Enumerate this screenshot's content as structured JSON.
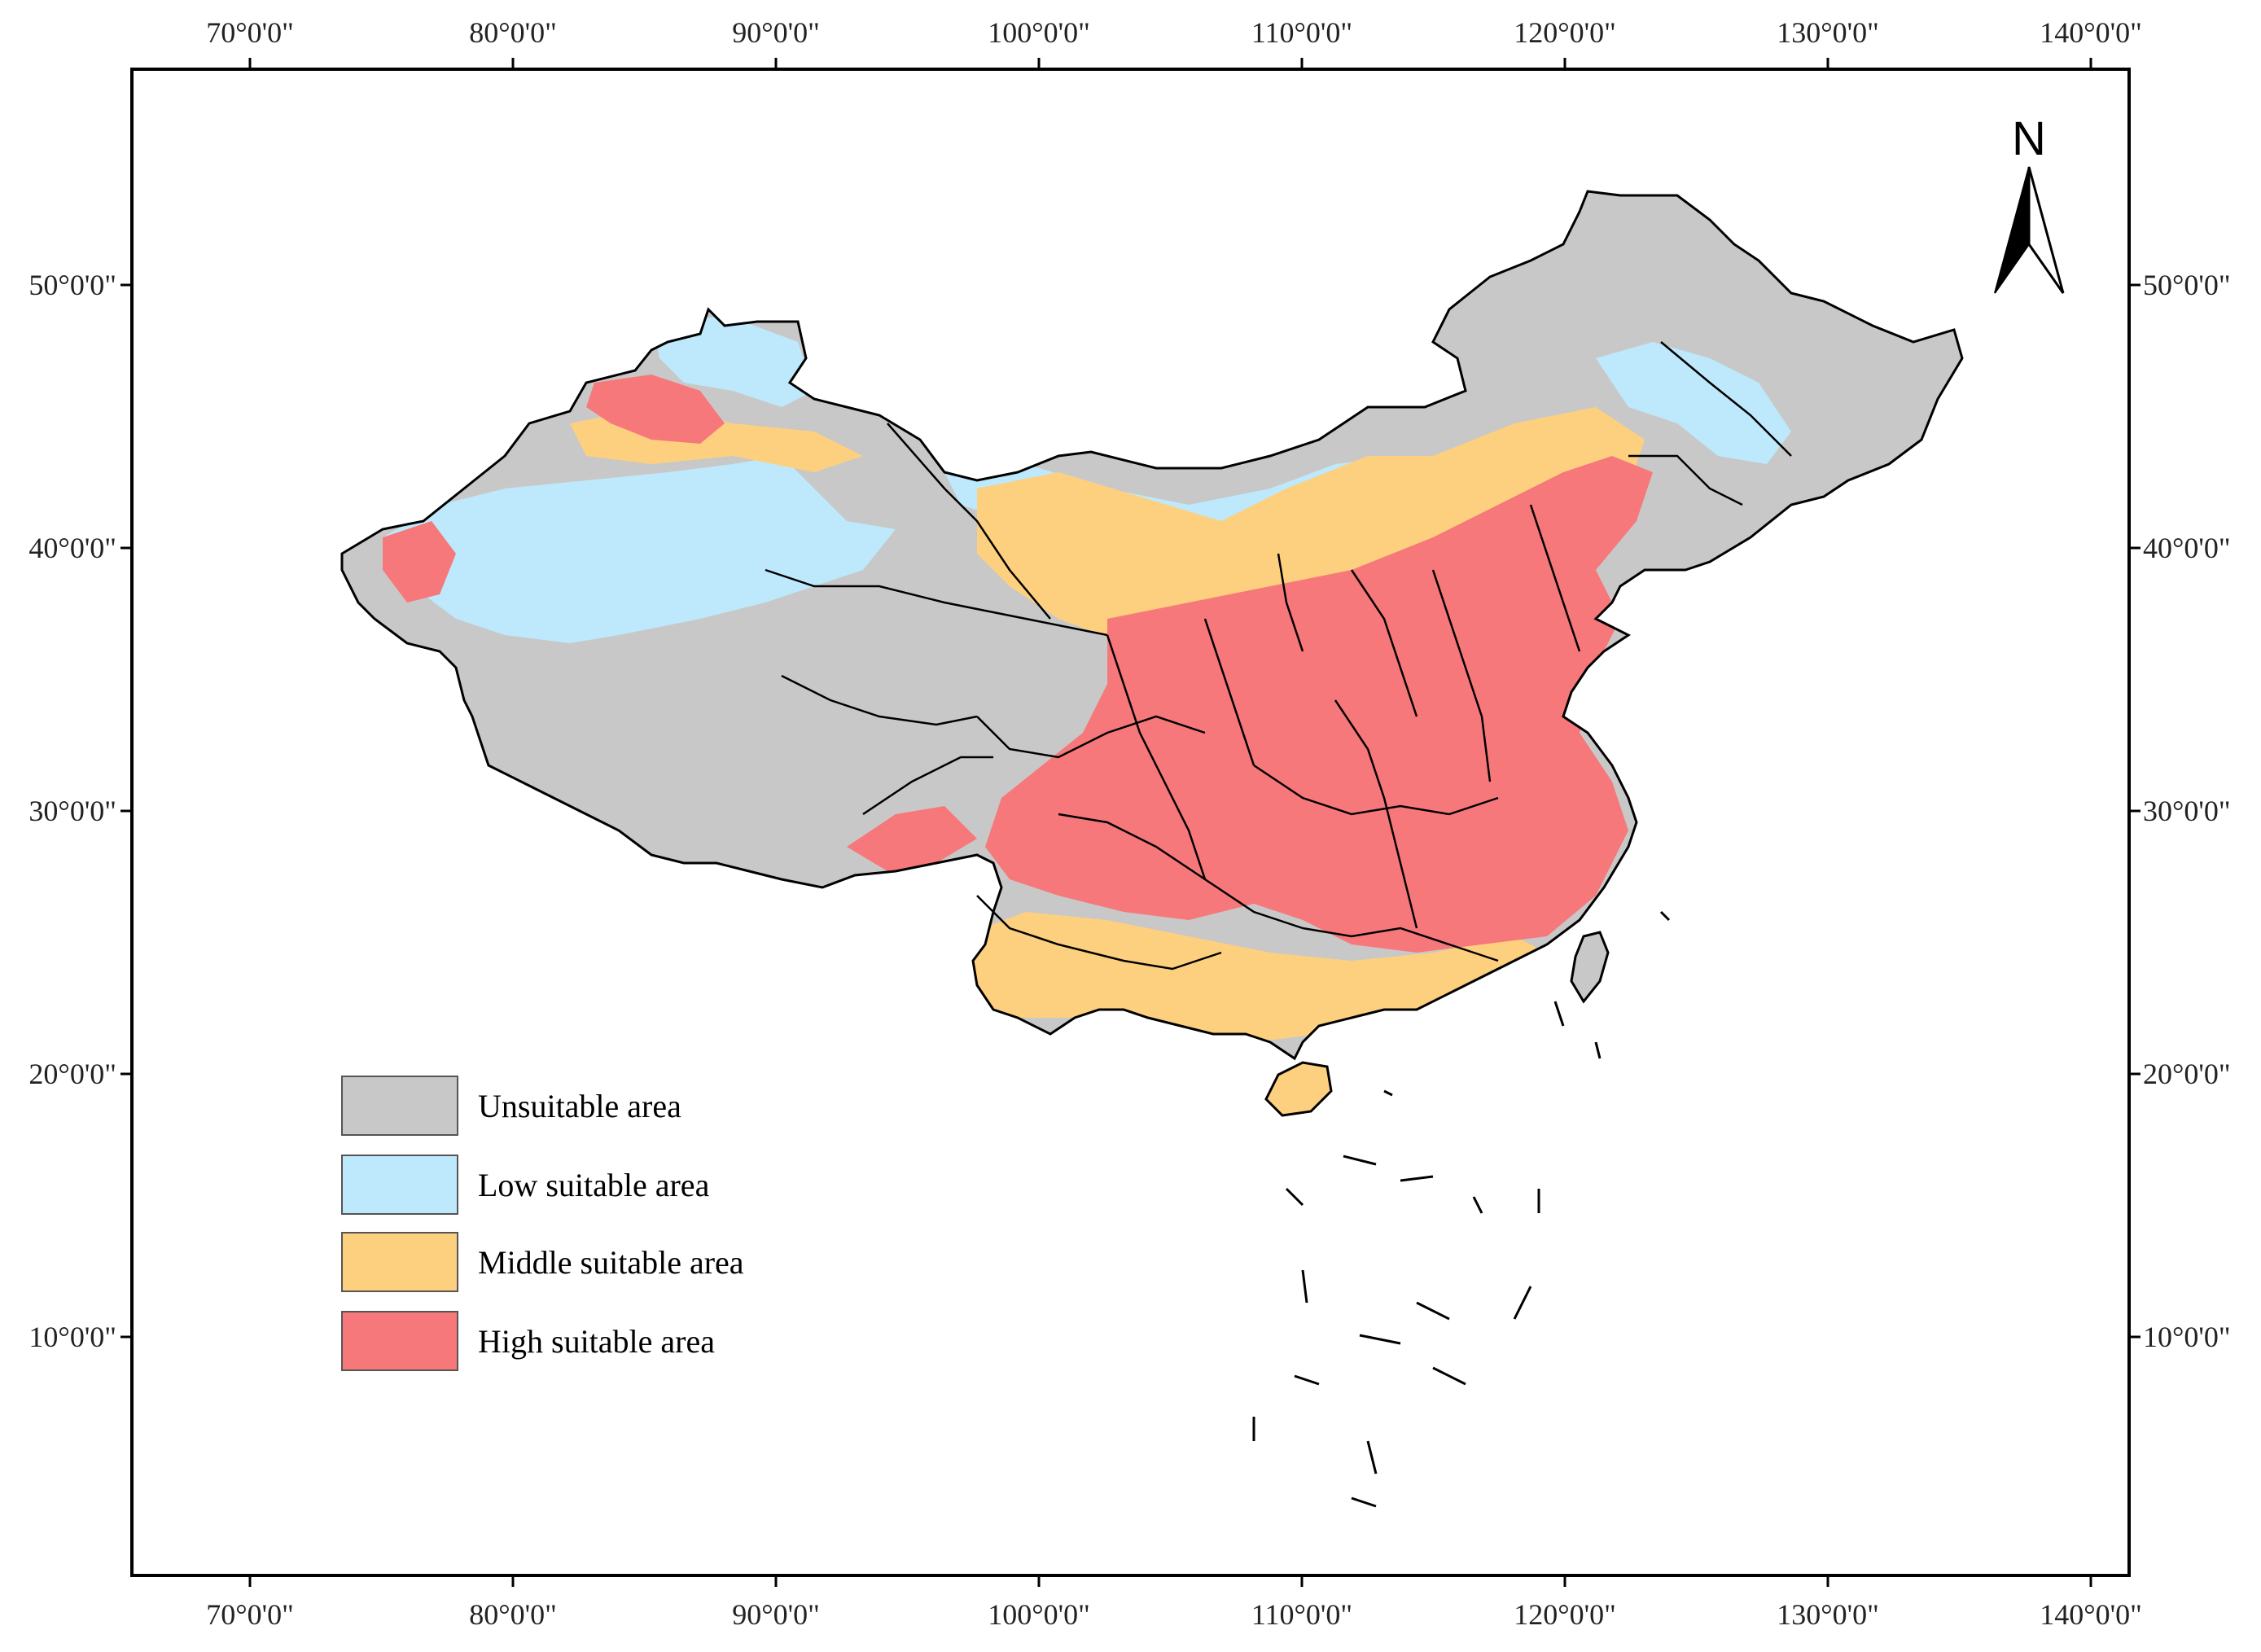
{
  "map": {
    "x_ticks": [
      "70°0'0\"",
      "80°0'0\"",
      "90°0'0\"",
      "100°0'0\"",
      "110°0'0\"",
      "120°0'0\"",
      "130°0'0\"",
      "140°0'0\""
    ],
    "y_ticks": [
      "50°0'0\"",
      "40°0'0\"",
      "30°0'0\"",
      "20°0'0\"",
      "10°0'0\""
    ],
    "north_label": "N",
    "legend": [
      {
        "label": "Unsuitable area",
        "color": "#c8c8c8"
      },
      {
        "label": "Low suitable area",
        "color": "#bee8fb"
      },
      {
        "label": "Middle suitable area",
        "color": "#fdd07f"
      },
      {
        "label": "High suitable area",
        "color": "#f7787a"
      }
    ],
    "colors": {
      "unsuitable": "#c8c8c8",
      "low": "#bee8fb",
      "middle": "#fdd07f",
      "high": "#f7787a",
      "border": "#000000"
    }
  }
}
